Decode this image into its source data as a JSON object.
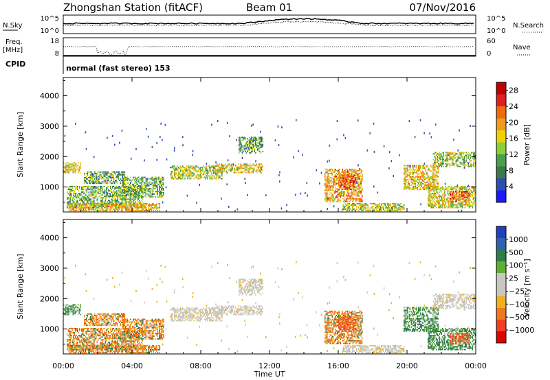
{
  "header": {
    "station": "Zhongshan Station (fitACF)",
    "beam": "Beam 01",
    "date": "07/Nov/2016"
  },
  "strip_panels": {
    "nsky_label": "N.Sky",
    "nsky_ticks": [
      "10^5",
      "10^0"
    ],
    "nsearch_label": "N.Search",
    "nsearch_ticks": [
      "10^5",
      "10^0"
    ],
    "freq_label_1": "Freq.",
    "freq_label_2": "[MHz]",
    "freq_ticks": [
      "18",
      "8"
    ],
    "nave_label": "Nave",
    "nave_ticks": [
      "60",
      "0"
    ],
    "cpid_label": "CPID",
    "cpid_text": "normal (fast stereo) 153"
  },
  "colors": {
    "power_scale": [
      "#1a1aff",
      "#2f4fb0",
      "#3a7a4a",
      "#4aa04a",
      "#8ccf3a",
      "#f0d000",
      "#f09a20",
      "#f06a10",
      "#e02020",
      "#c00000"
    ],
    "velocity_scale": [
      "#2040c0",
      "#3060b0",
      "#2e7d4a",
      "#60b030",
      "#c8c8c0",
      "#c8c8c0",
      "#f0b020",
      "#f07820",
      "#f04020",
      "#e00000"
    ]
  },
  "chart_data": [
    {
      "type": "heatmap",
      "name": "power-panel",
      "ylabel": "Slant Range [km]",
      "y_ticks": [
        "1000",
        "2000",
        "3000",
        "4000"
      ],
      "ylim": [
        180,
        4600
      ],
      "xlim": [
        0,
        24
      ],
      "colorbar_label": "Power [dB]",
      "colorbar_ticks": [
        "4",
        "8",
        "12",
        "16",
        "20",
        "24",
        "28"
      ],
      "colorbar_range": [
        0,
        30
      ]
    },
    {
      "type": "heatmap",
      "name": "velocity-panel",
      "xlabel": "Time UT",
      "x_ticks": [
        "00:00",
        "04:00",
        "08:00",
        "12:00",
        "16:00",
        "20:00",
        "00:00"
      ],
      "ylabel": "Slant Range [km]",
      "y_ticks": [
        "1000",
        "2000",
        "3000",
        "4000"
      ],
      "ylim": [
        180,
        4600
      ],
      "xlim": [
        0,
        24
      ],
      "colorbar_label": "Velocity [m s⁻¹]",
      "colorbar_ticks": [
        "1000",
        "500",
        "100",
        "25",
        "−25",
        "−100",
        "−500",
        "−1000"
      ]
    }
  ]
}
